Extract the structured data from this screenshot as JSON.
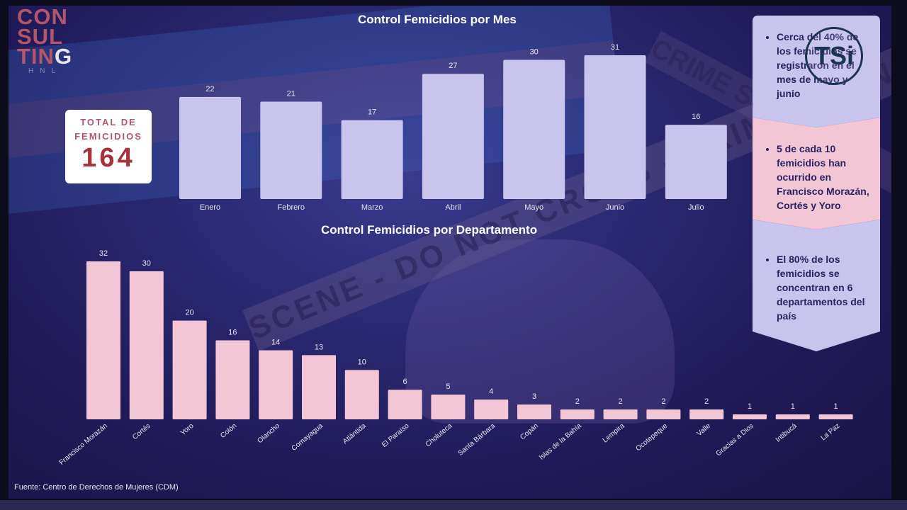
{
  "logo": {
    "line1": "CON",
    "line2": "SUL",
    "line3": "TIN",
    "line3_last": "G",
    "sub": "HNL"
  },
  "total": {
    "label_line1": "TOTAL DE",
    "label_line2": "FEMICIDIOS",
    "value": "164"
  },
  "source": "Fuente: Centro de Derechos de Mujeres (CDM)",
  "background_text": {
    "tape_main": "SCENE - DO NOT CROSS - CRIME SCENE",
    "tape_side": "CRIME SCENE"
  },
  "watermark": {
    "text": "TSi"
  },
  "colors": {
    "month_bars": "#c8c4ee",
    "dept_bars": "#f3c6d6",
    "title": "#ffffff",
    "banner_lavender": "#c8c4ee",
    "banner_pink": "#f3c6d6",
    "banner_text": "#2a2260",
    "total_text": "#a8323c"
  },
  "insights": [
    {
      "text": "Cerca del 40% de los femicidios se registraron en el mes de mayo y junio",
      "color": "#c8c4ee"
    },
    {
      "text": "5 de cada 10 femicidios han ocurrido en Francisco Morazán, Cortés y Yoro",
      "color": "#f3c6d6"
    },
    {
      "text": "El 80% de los femicidios se concentran en 6 departamentos del país",
      "color": "#c8c4ee"
    }
  ],
  "chart_data": [
    {
      "type": "bar",
      "title": "Control Femicidios por Mes",
      "categories": [
        "Enero",
        "Febrero",
        "Marzo",
        "Abril",
        "Mayo",
        "Junio",
        "Julio"
      ],
      "values": [
        22,
        21,
        17,
        27,
        30,
        31,
        16
      ],
      "xlabel": "",
      "ylabel": "",
      "ylim": [
        0,
        31
      ],
      "grid": false,
      "data_labels": true
    },
    {
      "type": "bar",
      "title": "Control Femicidios por Departamento",
      "categories": [
        "Francisco Morazán",
        "Cortés",
        "Yoro",
        "Colón",
        "Olancho",
        "Comayagua",
        "Atlántida",
        "El Paraíso",
        "Choluteca",
        "Santa Bárbara",
        "Copán",
        "Islas de la Bahía",
        "Lempira",
        "Ocotepeque",
        "Valle",
        "Gracias a Dios",
        "Intibucá",
        "La Paz"
      ],
      "values": [
        32,
        30,
        20,
        16,
        14,
        13,
        10,
        6,
        5,
        4,
        3,
        2,
        2,
        2,
        2,
        1,
        1,
        1
      ],
      "xlabel": "",
      "ylabel": "",
      "ylim": [
        0,
        32
      ],
      "grid": false,
      "data_labels": true
    }
  ]
}
